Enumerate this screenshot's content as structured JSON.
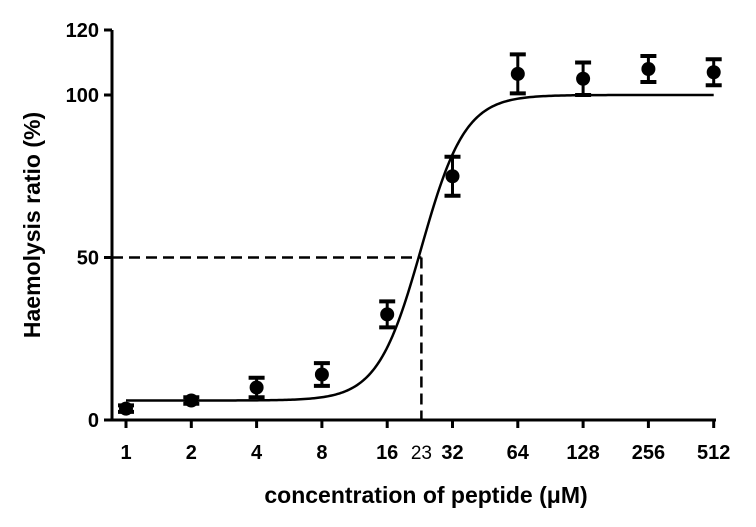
{
  "chart_data": {
    "type": "scatter",
    "xscale": "log2",
    "xlabel": "concentration of peptide (μM)",
    "ylabel": "Haemolysis ratio (%)",
    "ylim": [
      0,
      120
    ],
    "xlim": [
      1,
      512
    ],
    "x_ticks": [
      1,
      2,
      4,
      8,
      16,
      32,
      64,
      128,
      256,
      512
    ],
    "x_tick_labels": [
      "1",
      "2",
      "4",
      "8",
      "16",
      "32",
      "64",
      "128",
      "256",
      "512"
    ],
    "y_ticks": [
      0,
      50,
      100,
      120
    ],
    "y_tick_labels": [
      "0",
      "50",
      "100",
      "120"
    ],
    "grid": false,
    "series": [
      {
        "points": [
          {
            "x": 1,
            "y": 3.5,
            "err": 1.0
          },
          {
            "x": 2,
            "y": 6,
            "err": 1.0
          },
          {
            "x": 4,
            "y": 10,
            "err": 3
          },
          {
            "x": 8,
            "y": 14,
            "err": 3.5
          },
          {
            "x": 16,
            "y": 32.5,
            "err": 4
          },
          {
            "x": 32,
            "y": 75,
            "err": 6
          },
          {
            "x": 64,
            "y": 106.5,
            "err": 6
          },
          {
            "x": 128,
            "y": 105,
            "err": 5
          },
          {
            "x": 256,
            "y": 108,
            "err": 4
          },
          {
            "x": 512,
            "y": 107,
            "err": 4
          }
        ]
      }
    ],
    "fit_curve": {
      "bottom": 6,
      "top": 100,
      "ec50": 23,
      "hill": 4.3
    },
    "reference": {
      "x": 23,
      "y": 50,
      "label": "23",
      "style": "dashed"
    }
  }
}
